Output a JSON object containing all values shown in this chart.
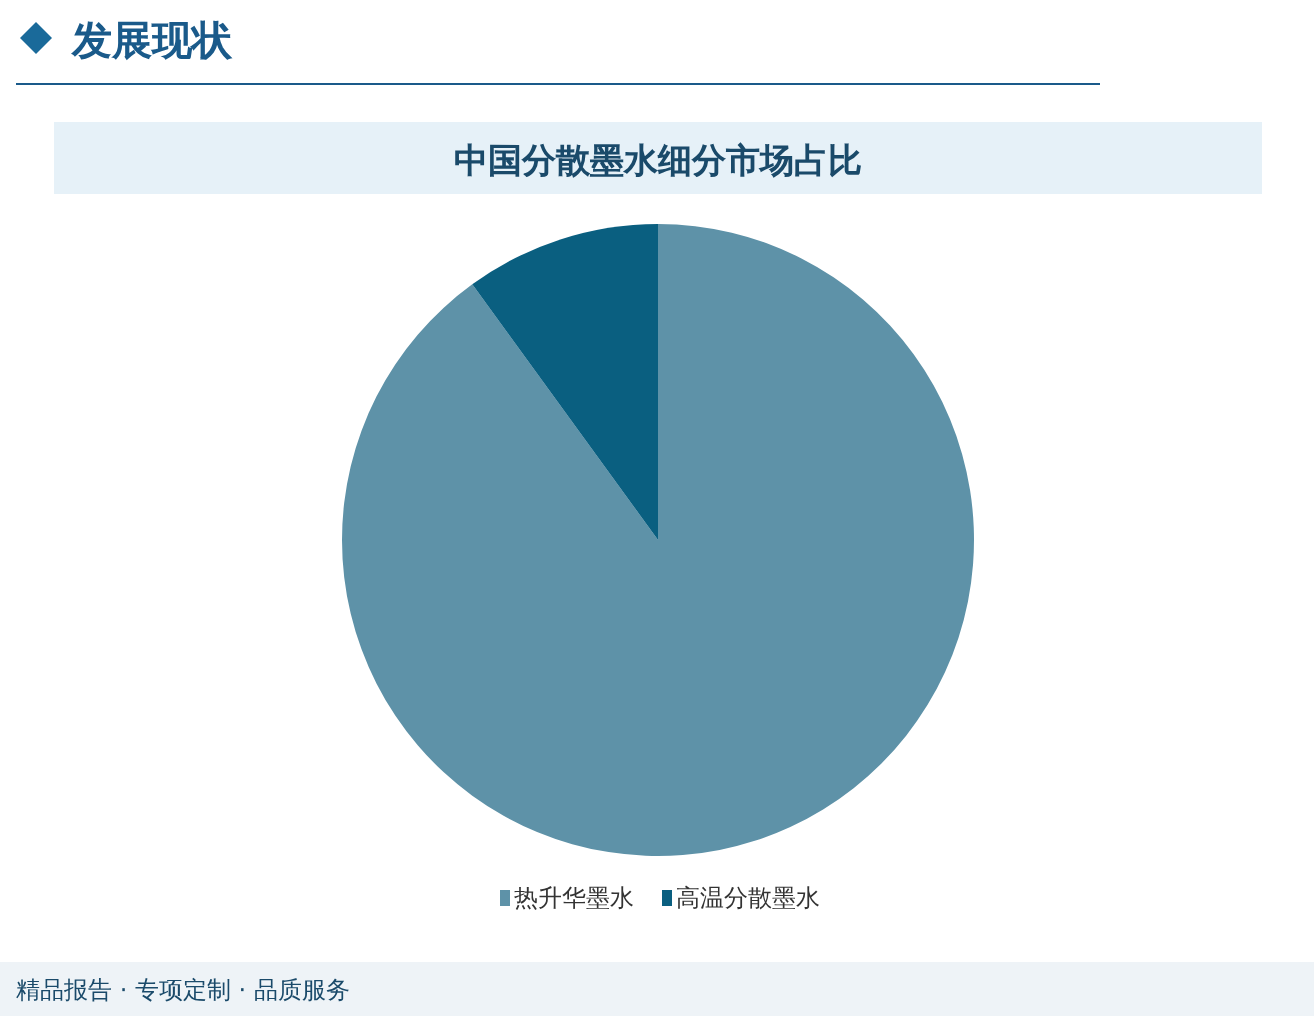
{
  "chart_data": {
    "type": "pie",
    "title": "中国分散墨水细分市场占比",
    "categories": [
      "热升华墨水",
      "高温分散墨水"
    ],
    "values": [
      90,
      10
    ],
    "colors": [
      "#5e92a8",
      "#0a5f80"
    ],
    "legend": "bottom",
    "annotations": [
      "发展现状",
      "精品报告 · 专项定制 · 品质服务"
    ]
  }
}
